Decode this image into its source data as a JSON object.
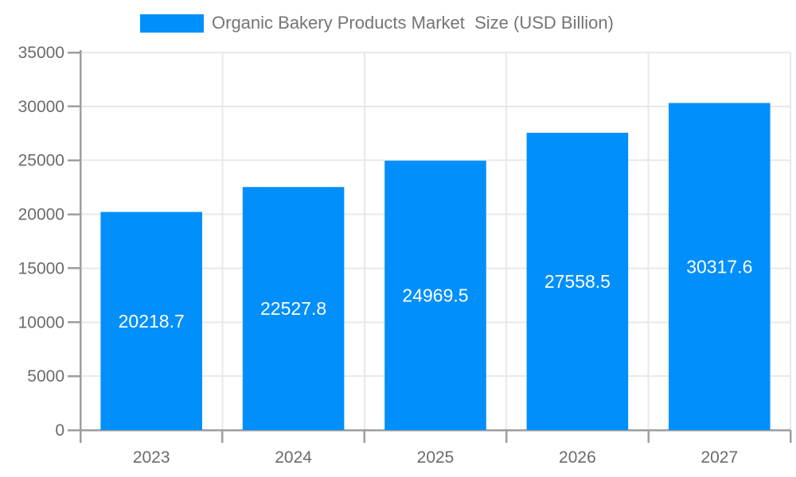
{
  "chart_data": {
    "type": "bar",
    "title": "Organic Bakery Products Market  Size (USD Billion)",
    "categories": [
      "2023",
      "2024",
      "2025",
      "2026",
      "2027"
    ],
    "values": [
      20218.7,
      22527.8,
      24969.5,
      27558.5,
      30317.6
    ],
    "bar_labels": [
      "20218.7",
      "22527.8",
      "24969.5",
      "27558.5",
      "30317.6"
    ],
    "series": [
      {
        "name": "Organic Bakery Products Market  Size (USD Billion)",
        "values": [
          20218.7,
          22527.8,
          24969.5,
          27558.5,
          30317.6
        ]
      }
    ],
    "xlabel": "",
    "ylabel": "",
    "ylim": [
      0,
      35000
    ],
    "ytick_step": 5000,
    "ytick_labels": [
      "0",
      "5000",
      "10000",
      "15000",
      "20000",
      "25000",
      "30000",
      "35000"
    ],
    "grid": true,
    "legend_position": "top",
    "colors": {
      "bar": "#008FFB",
      "bar_label": "#FFFFFF",
      "axis_line": "#9E9E9E",
      "grid_line": "#E8E8E8",
      "tick_label": "#6B6B6B",
      "legend_text": "#757575",
      "background": "#FFFFFF"
    }
  },
  "legend": {
    "label": "Organic Bakery Products Market  Size (USD Billion)"
  }
}
